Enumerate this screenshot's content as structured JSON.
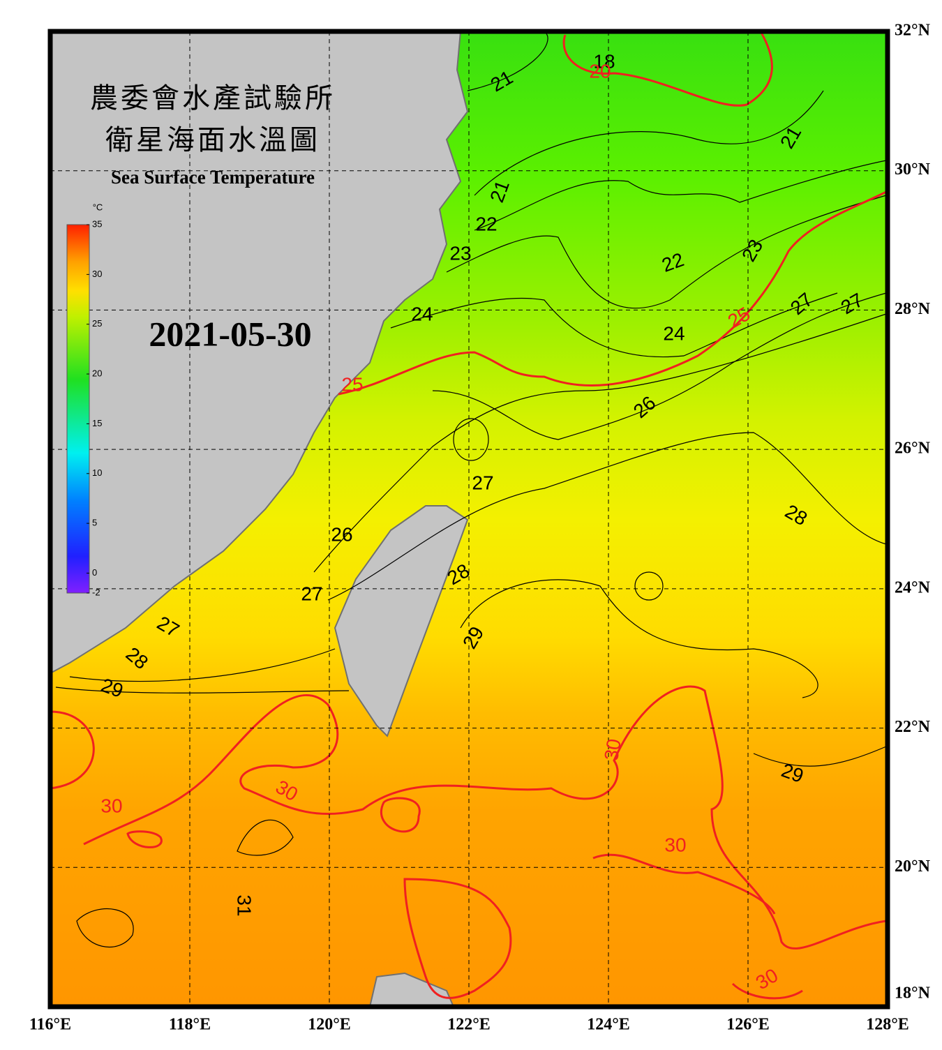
{
  "title_lines": [
    "農委會水產試驗所",
    "衛星海面水溫圖"
  ],
  "subtitle": "Sea Surface Temperature",
  "date": "2021-05-30",
  "colorbar": {
    "unit": "°C",
    "lim": [
      -2,
      35
    ],
    "ticks": [
      35,
      30,
      25,
      20,
      15,
      10,
      5,
      0,
      -2
    ]
  },
  "map": {
    "lonlim": [
      116,
      128
    ],
    "latlim": [
      18,
      32
    ],
    "lonticks": [
      {
        "value": 116,
        "label": "116°E"
      },
      {
        "value": 118,
        "label": "118°E"
      },
      {
        "value": 120,
        "label": "120°E"
      },
      {
        "value": 122,
        "label": "122°E"
      },
      {
        "value": 124,
        "label": "124°E"
      },
      {
        "value": 126,
        "label": "126°E"
      },
      {
        "value": 128,
        "label": "128°E"
      }
    ],
    "latticks": [
      {
        "value": 32,
        "label": "32°N"
      },
      {
        "value": 30,
        "label": "30°N"
      },
      {
        "value": 28,
        "label": "28°N"
      },
      {
        "value": 26,
        "label": "26°N"
      },
      {
        "value": 24,
        "label": "24°N"
      },
      {
        "value": 22,
        "label": "22°N"
      },
      {
        "value": 20,
        "label": "20°N"
      },
      {
        "value": 18,
        "label": "18°N"
      }
    ]
  },
  "contour_labels": [
    "18",
    "20",
    "21",
    "21",
    "21",
    "22",
    "22",
    "23",
    "23",
    "24",
    "24",
    "25",
    "25",
    "26",
    "26",
    "27",
    "27",
    "27",
    "27",
    "27",
    "28",
    "28",
    "28",
    "29",
    "29",
    "29",
    "30",
    "30",
    "30",
    "30",
    "30",
    "31"
  ]
}
